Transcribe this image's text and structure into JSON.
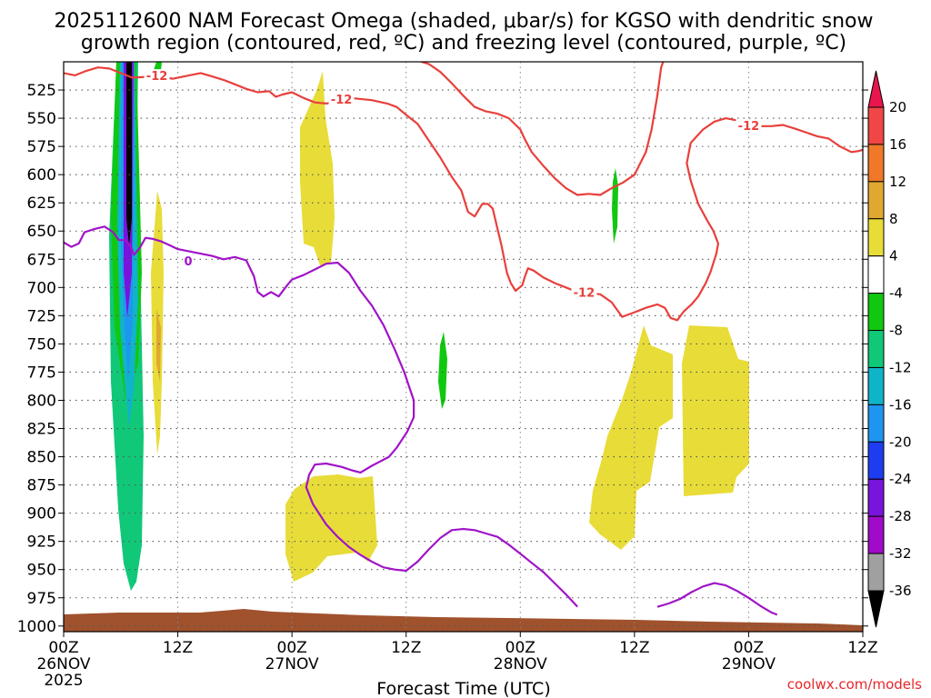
{
  "chart_data": {
    "type": "heatmap",
    "title_line1": "2025112600 NAM Forecast Omega (shaded, μbar/s) for KGSO with dendritic snow",
    "title_line2": "growth region (contoured, red, ºC) and freezing level (contoured, purple, ºC)",
    "xlabel": "Forecast Time (UTC)",
    "ylabel": "",
    "credit": "coolwx.com/models",
    "x_forecast_hours_range": [
      0,
      84
    ],
    "y_pressure_range_hPa": [
      1005,
      500
    ],
    "y_ticks": [
      525,
      550,
      575,
      600,
      625,
      650,
      675,
      700,
      725,
      750,
      775,
      800,
      825,
      850,
      875,
      900,
      925,
      950,
      975,
      1000
    ],
    "x_ticks": [
      {
        "hour": 0,
        "label": "00Z",
        "sub": "26NOV",
        "sub2": "2025"
      },
      {
        "hour": 12,
        "label": "12Z",
        "sub": "",
        "sub2": ""
      },
      {
        "hour": 24,
        "label": "00Z",
        "sub": "27NOV",
        "sub2": ""
      },
      {
        "hour": 36,
        "label": "12Z",
        "sub": "",
        "sub2": ""
      },
      {
        "hour": 48,
        "label": "00Z",
        "sub": "28NOV",
        "sub2": ""
      },
      {
        "hour": 60,
        "label": "12Z",
        "sub": "",
        "sub2": ""
      },
      {
        "hour": 72,
        "label": "00Z",
        "sub": "29NOV",
        "sub2": ""
      },
      {
        "hour": 84,
        "label": "12Z",
        "sub": "",
        "sub2": ""
      }
    ],
    "colorbar": {
      "labels": [
        "20",
        "16",
        "12",
        "8",
        "4",
        "-4",
        "-8",
        "-12",
        "-16",
        "-20",
        "-24",
        "-28",
        "-32",
        "-36"
      ],
      "colors": [
        "#e8164c",
        "#f04646",
        "#f07828",
        "#e0a830",
        "#e8dc38",
        "#ffffff",
        "#10c810",
        "#10c878",
        "#10b4c8",
        "#1e96f0",
        "#1e3cf0",
        "#7814dc",
        "#a00ac8",
        "#a0a0a0",
        "#000000"
      ]
    },
    "contour_labels": [
      {
        "text": "-12",
        "color": "#e8403c",
        "hour": 9.8,
        "p": 513
      },
      {
        "text": "-12",
        "color": "#e8403c",
        "hour": 29.2,
        "p": 534
      },
      {
        "text": "-12",
        "color": "#e8403c",
        "hour": 54.7,
        "p": 705
      },
      {
        "text": "-12",
        "color": "#e8403c",
        "hour": 72,
        "p": 557
      },
      {
        "text": "0",
        "color": "#a014c8",
        "hour": 13.1,
        "p": 677
      }
    ],
    "series": [
      {
        "name": "dendritic growth region upper boundary (-12 C)",
        "color": "#e8403c",
        "points": [
          [
            0,
            510
          ],
          [
            1.2,
            512
          ],
          [
            2.4,
            508
          ],
          [
            3.6,
            505
          ],
          [
            4.8,
            506
          ],
          [
            6,
            510
          ],
          [
            7.2,
            514
          ],
          [
            9.6,
            513
          ],
          [
            11.5,
            515
          ],
          [
            13.2,
            512
          ],
          [
            14.4,
            510
          ],
          [
            15.6,
            513
          ],
          [
            16.8,
            516
          ],
          [
            18,
            520
          ],
          [
            19.2,
            524
          ],
          [
            20.4,
            527
          ],
          [
            21.6,
            526
          ],
          [
            22.3,
            531
          ],
          [
            23,
            529
          ],
          [
            24,
            527
          ],
          [
            25.2,
            532
          ],
          [
            26.4,
            536
          ],
          [
            27.6,
            537
          ],
          [
            28.8,
            535
          ],
          [
            30,
            532
          ],
          [
            32.4,
            534
          ],
          [
            34,
            537
          ],
          [
            35,
            540
          ],
          [
            36,
            547
          ],
          [
            37.2,
            555
          ],
          [
            38.4,
            570
          ],
          [
            39.6,
            585
          ],
          [
            40.8,
            602
          ],
          [
            41.8,
            614
          ],
          [
            42.5,
            633
          ],
          [
            43.2,
            637
          ],
          [
            44,
            626
          ],
          [
            44.6,
            626
          ],
          [
            45.1,
            630
          ],
          [
            45.6,
            648
          ],
          [
            46,
            662
          ],
          [
            46.6,
            687
          ],
          [
            47,
            696
          ],
          [
            47.5,
            703
          ],
          [
            48.2,
            698
          ],
          [
            48.5,
            690
          ],
          [
            48.8,
            683
          ],
          [
            49.4,
            685
          ],
          [
            50.4,
            691
          ],
          [
            51.6,
            696
          ],
          [
            52.8,
            700
          ],
          [
            54,
            704
          ],
          [
            56.4,
            706
          ],
          [
            57.6,
            713
          ],
          [
            58.7,
            726
          ],
          [
            60,
            722
          ],
          [
            61.2,
            718
          ],
          [
            62.4,
            715
          ],
          [
            63.2,
            718
          ],
          [
            63.8,
            727
          ],
          [
            64.5,
            729
          ],
          [
            65.2,
            721
          ],
          [
            66,
            715
          ],
          [
            66.7,
            708
          ],
          [
            67.5,
            696
          ],
          [
            68,
            686
          ],
          [
            68.6,
            670
          ],
          [
            68.8,
            661
          ],
          [
            68.3,
            650
          ],
          [
            67.6,
            640
          ],
          [
            66.7,
            626
          ],
          [
            65.9,
            605
          ],
          [
            65.5,
            590
          ],
          [
            65.9,
            572
          ],
          [
            67.2,
            560
          ],
          [
            68.4,
            553
          ],
          [
            69.6,
            550
          ],
          [
            72,
            554
          ],
          [
            73.2,
            557
          ],
          [
            74.4,
            557
          ],
          [
            75.6,
            556
          ],
          [
            76.8,
            559
          ],
          [
            79.2,
            566
          ],
          [
            80.4,
            568
          ],
          [
            81.6,
            575
          ],
          [
            82.8,
            580
          ],
          [
            83.6,
            579
          ],
          [
            84,
            578
          ]
        ]
      },
      {
        "name": "dendritic growth region lower boundary (-12 C)",
        "color": "#e8403c",
        "points": [
          [
            37.6,
            500
          ],
          [
            38.4,
            502
          ],
          [
            39.6,
            509
          ],
          [
            40.8,
            519
          ],
          [
            42,
            530
          ],
          [
            43.2,
            540
          ],
          [
            44.4,
            544
          ],
          [
            45.6,
            546
          ],
          [
            46.8,
            550
          ],
          [
            48,
            560
          ],
          [
            48.5,
            569
          ],
          [
            49.2,
            580
          ],
          [
            50.4,
            592
          ],
          [
            51.6,
            603
          ],
          [
            52.8,
            612
          ],
          [
            54,
            618
          ],
          [
            55.2,
            617
          ],
          [
            56.4,
            618
          ],
          [
            57.6,
            612
          ],
          [
            58.8,
            607
          ],
          [
            60,
            600
          ],
          [
            61.2,
            580
          ],
          [
            61.8,
            560
          ],
          [
            62.4,
            530
          ],
          [
            62.8,
            505
          ],
          [
            63,
            500
          ]
        ]
      },
      {
        "name": "freezing level (0 C)",
        "color": "#a014c8",
        "points": [
          [
            0,
            660
          ],
          [
            0.8,
            664
          ],
          [
            1.6,
            661
          ],
          [
            2.2,
            651
          ],
          [
            3.3,
            648
          ],
          [
            4.3,
            646
          ],
          [
            5.2,
            651
          ],
          [
            5.8,
            658
          ],
          [
            6.5,
            658
          ],
          [
            7,
            663
          ],
          [
            7.4,
            671
          ],
          [
            8,
            665
          ],
          [
            8.6,
            656
          ],
          [
            9.4,
            657
          ],
          [
            10.2,
            659
          ],
          [
            11,
            662
          ],
          [
            12,
            666
          ],
          [
            13.2,
            668
          ],
          [
            14.4,
            670
          ],
          [
            15.6,
            672
          ],
          [
            16.8,
            675
          ],
          [
            18,
            673
          ],
          [
            19.2,
            676
          ],
          [
            20,
            690
          ],
          [
            20.4,
            704
          ],
          [
            21,
            708
          ],
          [
            21.8,
            704
          ],
          [
            22.6,
            708
          ],
          [
            23.5,
            698
          ],
          [
            24,
            693
          ],
          [
            25.2,
            689
          ],
          [
            26.4,
            684
          ],
          [
            27.6,
            679
          ],
          [
            28.8,
            678
          ],
          [
            30,
            687
          ],
          [
            31.2,
            703
          ],
          [
            32.4,
            716
          ],
          [
            33.6,
            733
          ],
          [
            34.8,
            755
          ],
          [
            35.8,
            775
          ],
          [
            36.4,
            790
          ],
          [
            36.8,
            800
          ],
          [
            36.8,
            815
          ],
          [
            36.1,
            828
          ],
          [
            35,
            842
          ],
          [
            34.2,
            850
          ],
          [
            32.4,
            858
          ],
          [
            31.2,
            864
          ],
          [
            30.3,
            862
          ],
          [
            29.2,
            859
          ],
          [
            27.6,
            856
          ],
          [
            26.4,
            857
          ],
          [
            25.8,
            866
          ],
          [
            25.5,
            877
          ],
          [
            26.2,
            892
          ],
          [
            27.6,
            910
          ],
          [
            28.8,
            921
          ],
          [
            30,
            930
          ],
          [
            31.2,
            937
          ],
          [
            32.4,
            943
          ],
          [
            33.6,
            948
          ],
          [
            34.8,
            950
          ],
          [
            36,
            951
          ],
          [
            37.2,
            943
          ],
          [
            38.4,
            932
          ],
          [
            39.6,
            922
          ],
          [
            40.8,
            915
          ],
          [
            42,
            914
          ],
          [
            43.2,
            915
          ],
          [
            44.4,
            918
          ],
          [
            45.6,
            921
          ],
          [
            46.8,
            928
          ],
          [
            48,
            936
          ],
          [
            49.2,
            944
          ],
          [
            50.4,
            952
          ],
          [
            51.6,
            962
          ],
          [
            52.8,
            972
          ],
          [
            53.8,
            981
          ],
          [
            54,
            983
          ]
        ]
      },
      {
        "name": "freezing level (0 C) near surface",
        "color": "#a014c8",
        "points": [
          [
            62.4,
            983
          ],
          [
            63.6,
            980
          ],
          [
            64.8,
            976
          ],
          [
            66,
            970
          ],
          [
            67.2,
            965
          ],
          [
            68.4,
            962
          ],
          [
            69.6,
            964
          ],
          [
            70.8,
            969
          ],
          [
            72,
            975
          ],
          [
            73.2,
            982
          ],
          [
            74.4,
            988
          ],
          [
            75,
            990
          ]
        ]
      }
    ]
  }
}
